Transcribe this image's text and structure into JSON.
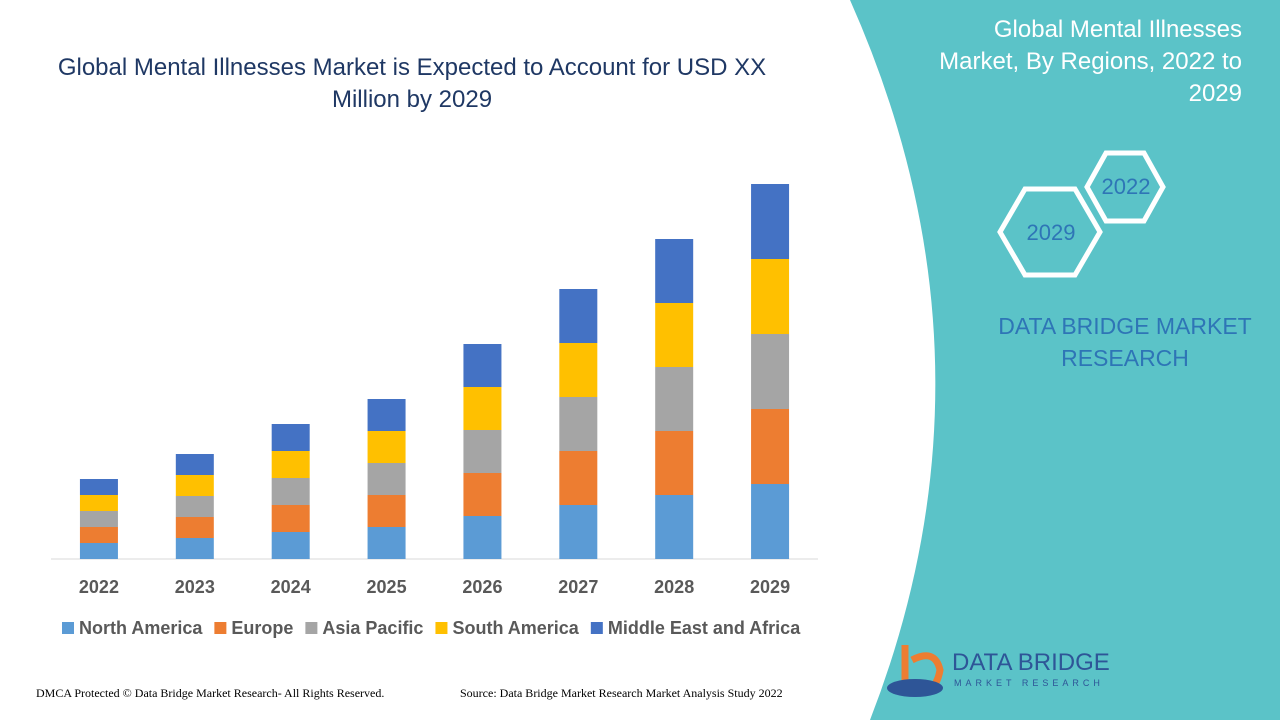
{
  "chart_data": {
    "type": "stacked-bar",
    "title": "Global Mental Illnesses Market is Expected to Account for USD XX Million by 2029",
    "categories": [
      "2022",
      "2023",
      "2024",
      "2025",
      "2026",
      "2027",
      "2028",
      "2029"
    ],
    "series": [
      {
        "name": "North America",
        "color": "#5b9bd5",
        "values": [
          16,
          21,
          27,
          32,
          43,
          54,
          64,
          75
        ]
      },
      {
        "name": "Europe",
        "color": "#ed7d31",
        "values": [
          16,
          21,
          27,
          32,
          43,
          54,
          64,
          75
        ]
      },
      {
        "name": "Asia Pacific",
        "color": "#a5a5a5",
        "values": [
          16,
          21,
          27,
          32,
          43,
          54,
          64,
          75
        ]
      },
      {
        "name": "South America",
        "color": "#ffc000",
        "values": [
          16,
          21,
          27,
          32,
          43,
          54,
          64,
          75
        ]
      },
      {
        "name": "Middle East and Africa",
        "color": "#4472c4",
        "values": [
          16,
          21,
          27,
          32,
          43,
          54,
          64,
          75
        ]
      }
    ],
    "ylim": [
      0,
      400
    ]
  },
  "panel": {
    "title": "Global Mental Illnesses Market, By Regions, 2022 to 2029",
    "years": [
      "2022",
      "2029"
    ],
    "brand": "DATA BRIDGE MARKET RESEARCH"
  },
  "logo": {
    "name": "DATA BRIDGE",
    "tagline": "MARKET RESEARCH"
  },
  "footer": {
    "copyright": "DMCA Protected © Data Bridge Market Research- All Rights Reserved.",
    "source": "Source: Data Bridge Market Research Market Analysis Study 2022"
  }
}
